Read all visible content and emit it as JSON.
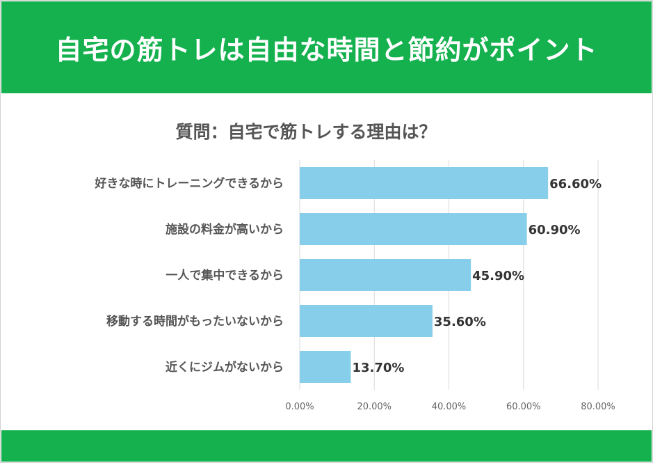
{
  "header": {
    "title": "自宅の筋トレは自由な時間と節約がポイント"
  },
  "colors": {
    "header_green": "#14b14e",
    "bar_blue": "#87ceeb",
    "grid": "#d9d9d9"
  },
  "chart_data": {
    "type": "bar",
    "orientation": "horizontal",
    "title": "質問：自宅で筋トレする理由は？",
    "categories": [
      "好きな時にトレーニングできるから",
      "施設の料金が高いから",
      "一人で集中できるから",
      "移動する時間がもったいないから",
      "近くにジムがないから"
    ],
    "values": [
      66.6,
      60.9,
      45.9,
      35.6,
      13.7
    ],
    "value_labels": [
      "66.60%",
      "60.90%",
      "45.90%",
      "35.60%",
      "13.70%"
    ],
    "xlim": [
      0,
      80
    ],
    "xticks": [
      0,
      20,
      40,
      60,
      80
    ],
    "xtick_labels": [
      "0.00%",
      "20.00%",
      "40.00%",
      "60.00%",
      "80.00%"
    ],
    "grid": true,
    "legend": "none"
  }
}
